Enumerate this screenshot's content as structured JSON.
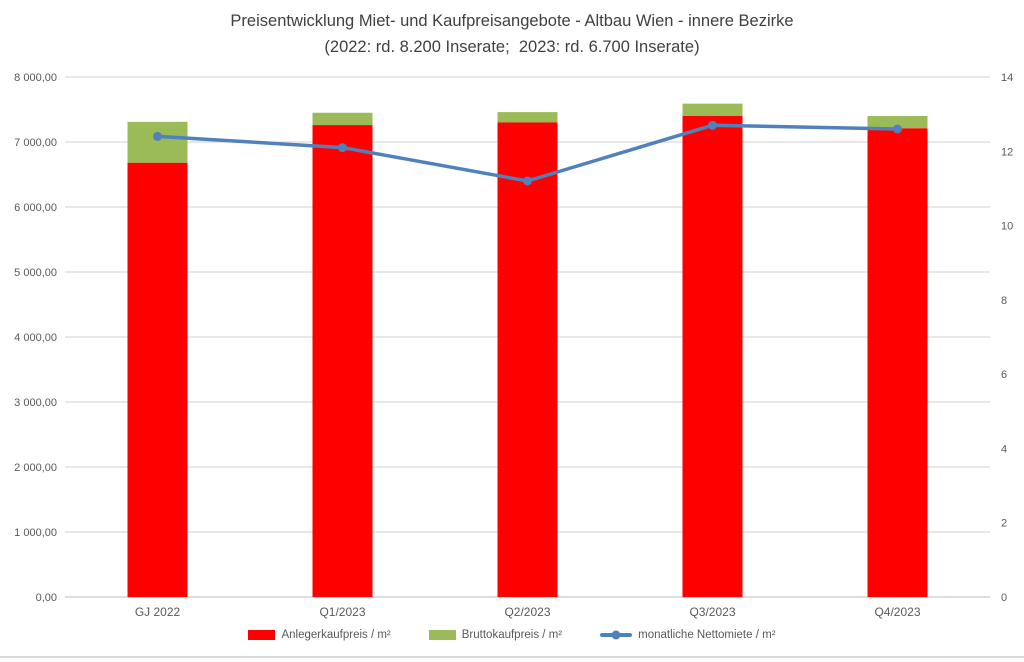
{
  "title": "Preisentwicklung Miet- und Kaufpreisangebote - Altbau Wien - innere Bezirke",
  "subtitle": "(2022: rd. 8.200 Inserate;  2023: rd. 6.700 Inserate)",
  "chart_data": {
    "type": "bar",
    "subtype": "stacked-bars-with-line",
    "title": "Preisentwicklung Miet- und Kaufpreisangebote - Altbau Wien - innere Bezirke",
    "subtitle": "(2022: rd. 8.200 Inserate;  2023: rd. 6.700 Inserate)",
    "categories": [
      "GJ 2022",
      "Q1/2023",
      "Q2/2023",
      "Q3/2023",
      "Q4/2023"
    ],
    "series": [
      {
        "name": "Anlegerkaufpreis / m²",
        "type": "bar",
        "axis": "left",
        "color": "#ff0000",
        "values": [
          6680,
          7260,
          7300,
          7400,
          7210
        ]
      },
      {
        "name": "Bruttokaufpreis / m²",
        "type": "bar",
        "axis": "left",
        "color": "#9bbb59",
        "stacked_on": "Anlegerkaufpreis / m²",
        "values": [
          7310,
          7450,
          7460,
          7590,
          7400
        ],
        "note_values_are": "top of stacked bar (gross price per m²)"
      },
      {
        "name": "monatliche Nettomiete / m²",
        "type": "line",
        "axis": "right",
        "color": "#4f81bd",
        "values": [
          12.4,
          12.1,
          11.2,
          12.7,
          12.6
        ]
      }
    ],
    "left_axis": {
      "min": 0,
      "max": 8000,
      "step": 1000,
      "ticks": [
        {
          "value": 0,
          "label": "0,00"
        },
        {
          "value": 1000,
          "label": "1 000,00"
        },
        {
          "value": 2000,
          "label": "2 000,00"
        },
        {
          "value": 3000,
          "label": "3 000,00"
        },
        {
          "value": 4000,
          "label": "4 000,00"
        },
        {
          "value": 5000,
          "label": "5 000,00"
        },
        {
          "value": 6000,
          "label": "6 000,00"
        },
        {
          "value": 7000,
          "label": "7 000,00"
        },
        {
          "value": 8000,
          "label": "8 000,00"
        }
      ]
    },
    "right_axis": {
      "min": 0,
      "max": 14,
      "step": 2,
      "ticks": [
        {
          "value": 0,
          "label": "0"
        },
        {
          "value": 2,
          "label": "2"
        },
        {
          "value": 4,
          "label": "4"
        },
        {
          "value": 6,
          "label": "6"
        },
        {
          "value": 8,
          "label": "8"
        },
        {
          "value": 10,
          "label": "10"
        },
        {
          "value": 12,
          "label": "12"
        },
        {
          "value": 14,
          "label": "14"
        }
      ]
    },
    "grid": "horizontal",
    "legend_position": "bottom",
    "colors": {
      "grid": "#d9d9d9",
      "baseline": "#c9c9c9",
      "tick_text": "#595959",
      "title_text": "#404040"
    }
  }
}
